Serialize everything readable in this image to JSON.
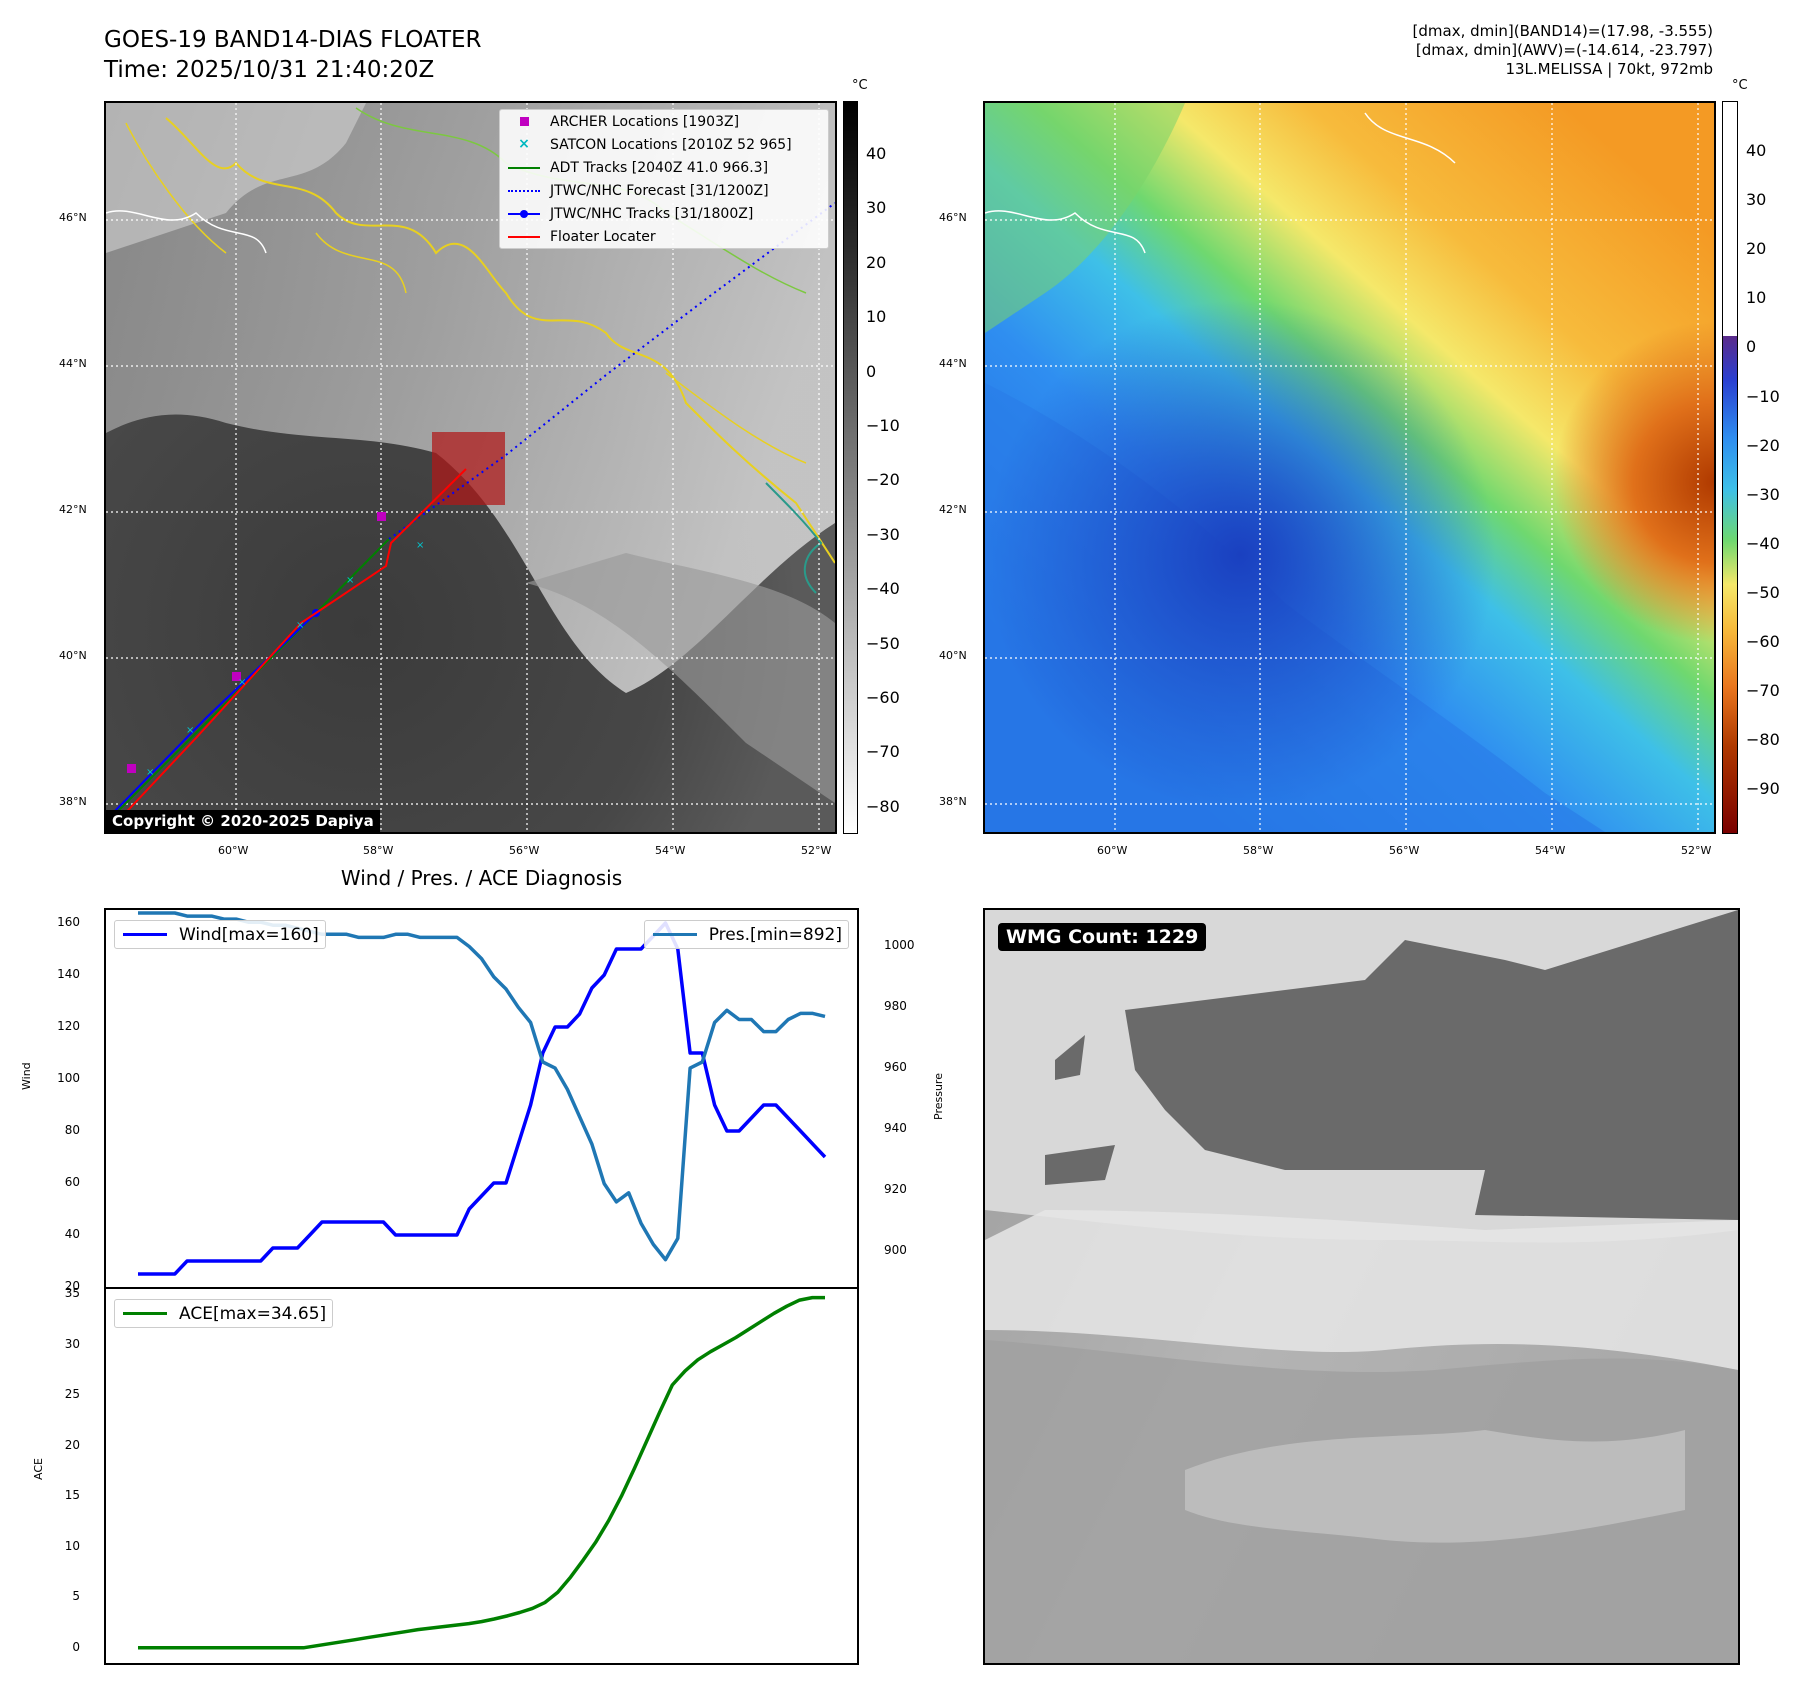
{
  "header": {
    "title": "GOES-19 BAND14-DIAS FLOATER",
    "time": "Time: 2025/10/31 21:40:20Z",
    "info_line1": "[dmax, dmin](BAND14)=(17.98, -3.555)",
    "info_line2": "[dmax, dmin](AWV)=(-14.614, -23.797)",
    "info_line3": "13L.MELISSA | 70kt, 972mb"
  },
  "map_ir": {
    "lat_labels": [
      "46°N",
      "44°N",
      "42°N",
      "40°N",
      "38°N"
    ],
    "lon_labels": [
      "60°W",
      "58°W",
      "56°W",
      "54°W",
      "52°W"
    ],
    "copyright": "Copyright © 2020-2025 Dapiya",
    "legend": [
      {
        "label": "ARCHER Locations [1903Z]",
        "symbol": "square",
        "color": "#c000c0"
      },
      {
        "label": "SATCON Locations [2010Z 52 965]",
        "symbol": "x",
        "color": "#00b8c0"
      },
      {
        "label": "ADT Tracks [2040Z 41.0 966.3]",
        "symbol": "line",
        "color": "#008000"
      },
      {
        "label": "JTWC/NHC Forecast [31/1200Z]",
        "symbol": "dotted",
        "color": "#0000ff"
      },
      {
        "label": "JTWC/NHC Tracks [31/1800Z]",
        "symbol": "line-dot",
        "color": "#0000ff"
      },
      {
        "label": "Floater Locater",
        "symbol": "line",
        "color": "#ff0000"
      }
    ],
    "colorbar_unit": "°C",
    "colorbar_ticks": [
      "40",
      "30",
      "20",
      "10",
      "0",
      "−10",
      "−20",
      "−30",
      "−40",
      "−50",
      "−60",
      "−70",
      "−80"
    ]
  },
  "map_wv": {
    "lat_labels": [
      "46°N",
      "44°N",
      "42°N",
      "40°N",
      "38°N"
    ],
    "lon_labels": [
      "60°W",
      "58°W",
      "56°W",
      "54°W",
      "52°W"
    ],
    "colorbar_unit": "°C",
    "colorbar_ticks": [
      "40",
      "30",
      "20",
      "10",
      "0",
      "−10",
      "−20",
      "−30",
      "−40",
      "−50",
      "−60",
      "−70",
      "−80",
      "−90"
    ]
  },
  "diagnosis": {
    "title": "Wind / Pres. / ACE Diagnosis",
    "wind_axis_label": "Wind",
    "pressure_axis_label": "Pressure",
    "ace_axis_label": "ACE",
    "wind_legend": "Wind[max=160]",
    "pres_legend": "Pres.[min=892]",
    "ace_legend": "ACE[max=34.65]",
    "wind_ticks": [
      "160",
      "140",
      "120",
      "100",
      "80",
      "60",
      "40",
      "20"
    ],
    "pres_ticks": [
      "1000",
      "980",
      "960",
      "940",
      "920",
      "900"
    ],
    "ace_ticks": [
      "35",
      "30",
      "25",
      "20",
      "15",
      "10",
      "5",
      "0"
    ]
  },
  "wmg": {
    "count_label": "WMG Count: 1229"
  },
  "colors": {
    "wind": "#0000ff",
    "pressure": "#1f77b4",
    "ace": "#008000",
    "floater": "#ff0000"
  },
  "chart_data": [
    {
      "type": "line",
      "title": "Wind / Pres. / ACE Diagnosis",
      "ylabel": "Wind",
      "ylim": [
        20,
        165
      ],
      "series": [
        {
          "name": "Wind[max=160]",
          "values": [
            25,
            25,
            25,
            25,
            30,
            30,
            30,
            30,
            30,
            30,
            30,
            35,
            35,
            35,
            40,
            45,
            45,
            45,
            45,
            45,
            45,
            40,
            40,
            40,
            40,
            40,
            40,
            50,
            55,
            60,
            60,
            75,
            90,
            110,
            120,
            120,
            125,
            135,
            140,
            150,
            150,
            150,
            155,
            160,
            150,
            110,
            110,
            90,
            80,
            80,
            85,
            90,
            90,
            85,
            80,
            75,
            70
          ]
        }
      ]
    },
    {
      "type": "line",
      "ylabel": "Pressure",
      "ylim": [
        888,
        1012
      ],
      "series": [
        {
          "name": "Pres.[min=892]",
          "values": [
            1011,
            1011,
            1011,
            1011,
            1010,
            1010,
            1010,
            1009,
            1009,
            1008,
            1008,
            1007,
            1007,
            1006,
            1005,
            1004,
            1004,
            1004,
            1003,
            1003,
            1003,
            1004,
            1004,
            1003,
            1003,
            1003,
            1003,
            1000,
            996,
            990,
            986,
            980,
            975,
            962,
            960,
            953,
            944,
            935,
            922,
            916,
            919,
            909,
            902,
            897,
            904,
            960,
            962,
            975,
            979,
            976,
            976,
            972,
            972,
            976,
            978,
            978,
            977
          ]
        }
      ]
    },
    {
      "type": "line",
      "ylabel": "ACE",
      "ylim": [
        -1.5,
        35.5
      ],
      "series": [
        {
          "name": "ACE[max=34.65]",
          "values": [
            0,
            0,
            0,
            0,
            0,
            0,
            0,
            0,
            0,
            0,
            0,
            0,
            0,
            0,
            0.2,
            0.4,
            0.6,
            0.8,
            1.0,
            1.2,
            1.4,
            1.6,
            1.8,
            1.95,
            2.1,
            2.25,
            2.4,
            2.6,
            2.85,
            3.15,
            3.5,
            3.9,
            4.5,
            5.5,
            7.0,
            8.7,
            10.5,
            12.6,
            15.0,
            17.7,
            20.5,
            23.3,
            26.0,
            27.4,
            28.5,
            29.3,
            30.0,
            30.7,
            31.5,
            32.3,
            33.1,
            33.8,
            34.4,
            34.65,
            34.65
          ]
        }
      ]
    }
  ]
}
